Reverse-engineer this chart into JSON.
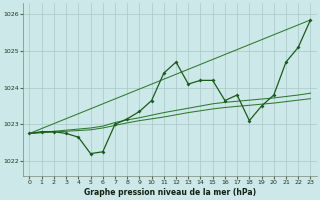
{
  "bg_color": "#cde8e8",
  "grid_color": "#aac8c8",
  "line_color_main": "#1a5c1a",
  "line_color_s1": "#2d7a2d",
  "line_color_s2": "#2d7a2d",
  "line_color_s3": "#2d7a2d",
  "xlabel": "Graphe pression niveau de la mer (hPa)",
  "xlim": [
    -0.5,
    23.5
  ],
  "ylim": [
    1021.6,
    1026.3
  ],
  "yticks": [
    1022,
    1023,
    1024,
    1025,
    1026
  ],
  "xticks": [
    0,
    1,
    2,
    3,
    4,
    5,
    6,
    7,
    8,
    9,
    10,
    11,
    12,
    13,
    14,
    15,
    16,
    17,
    18,
    19,
    20,
    21,
    22,
    23
  ],
  "series_main": {
    "x": [
      0,
      1,
      2,
      3,
      4,
      5,
      6,
      7,
      8,
      9,
      10,
      11,
      12,
      13,
      14,
      15,
      16,
      17,
      18,
      19,
      20,
      21,
      22,
      23
    ],
    "y": [
      1022.75,
      1022.8,
      1022.8,
      1022.75,
      1022.65,
      1022.2,
      1022.25,
      1023.0,
      1023.15,
      1023.35,
      1023.65,
      1024.4,
      1024.7,
      1024.1,
      1024.2,
      1024.2,
      1023.65,
      1023.8,
      1023.1,
      1023.5,
      1023.8,
      1024.7,
      1025.1,
      1025.85
    ]
  },
  "series_s1": {
    "x": [
      0,
      23
    ],
    "y": [
      1022.75,
      1025.85
    ]
  },
  "series_s2": {
    "x": [
      0,
      1,
      2,
      3,
      4,
      5,
      6,
      7,
      8,
      9,
      10,
      11,
      12,
      13,
      14,
      15,
      16,
      17,
      18,
      19,
      20,
      21,
      22,
      23
    ],
    "y": [
      1022.75,
      1022.78,
      1022.81,
      1022.84,
      1022.87,
      1022.9,
      1022.95,
      1023.05,
      1023.12,
      1023.18,
      1023.25,
      1023.32,
      1023.38,
      1023.44,
      1023.5,
      1023.56,
      1023.6,
      1023.63,
      1023.66,
      1023.69,
      1023.72,
      1023.76,
      1023.8,
      1023.85
    ]
  },
  "series_s3": {
    "x": [
      0,
      1,
      2,
      3,
      4,
      5,
      6,
      7,
      8,
      9,
      10,
      11,
      12,
      13,
      14,
      15,
      16,
      17,
      18,
      19,
      20,
      21,
      22,
      23
    ],
    "y": [
      1022.75,
      1022.77,
      1022.79,
      1022.81,
      1022.83,
      1022.85,
      1022.9,
      1022.97,
      1023.04,
      1023.1,
      1023.15,
      1023.2,
      1023.26,
      1023.32,
      1023.37,
      1023.42,
      1023.46,
      1023.49,
      1023.52,
      1023.55,
      1023.58,
      1023.62,
      1023.66,
      1023.7
    ]
  }
}
